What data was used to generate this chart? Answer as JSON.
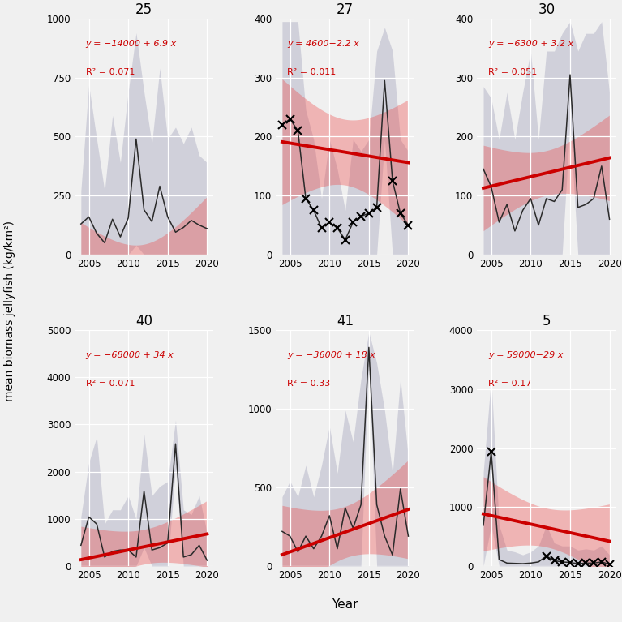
{
  "panels": [
    {
      "title": "25",
      "eq_line1": "y = −14000 + 6.9 x",
      "eq_line2": "R² = 0.071",
      "slope": 6.9,
      "intercept": -14000,
      "ylim": [
        0,
        1000
      ],
      "yticks": [
        0,
        250,
        500,
        750,
        1000
      ],
      "years": [
        2004,
        2005,
        2006,
        2007,
        2008,
        2009,
        2010,
        2011,
        2012,
        2013,
        2014,
        2015,
        2016,
        2017,
        2018,
        2019,
        2020
      ],
      "mean": [
        130,
        160,
        90,
        50,
        150,
        75,
        155,
        490,
        190,
        140,
        290,
        160,
        95,
        115,
        145,
        125,
        110
      ],
      "sd_upper": [
        270,
        720,
        490,
        270,
        590,
        390,
        690,
        940,
        690,
        470,
        790,
        490,
        540,
        470,
        540,
        420,
        390
      ],
      "sd_lower": [
        0,
        0,
        0,
        0,
        0,
        0,
        0,
        40,
        0,
        0,
        0,
        0,
        0,
        0,
        0,
        0,
        0
      ],
      "low_sample": []
    },
    {
      "title": "27",
      "eq_line1": "y = 4600−2.2 x",
      "eq_line2": "R² = 0.011",
      "slope": -2.2,
      "intercept": 4600,
      "ylim": [
        0,
        400
      ],
      "yticks": [
        0,
        100,
        200,
        300,
        400
      ],
      "years": [
        2004,
        2005,
        2006,
        2007,
        2008,
        2009,
        2010,
        2011,
        2012,
        2013,
        2014,
        2015,
        2016,
        2017,
        2018,
        2019,
        2020
      ],
      "mean": [
        220,
        230,
        210,
        95,
        75,
        45,
        55,
        45,
        25,
        55,
        65,
        70,
        80,
        295,
        125,
        70,
        50
      ],
      "sd_upper": [
        395,
        395,
        395,
        245,
        195,
        95,
        195,
        145,
        75,
        195,
        175,
        195,
        345,
        385,
        345,
        195,
        175
      ],
      "sd_lower": [
        0,
        0,
        0,
        0,
        0,
        0,
        0,
        0,
        0,
        0,
        0,
        0,
        0,
        195,
        0,
        0,
        0
      ],
      "low_sample": [
        2004,
        2005,
        2006,
        2007,
        2008,
        2009,
        2010,
        2011,
        2012,
        2013,
        2014,
        2015,
        2016,
        2018,
        2019,
        2020
      ]
    },
    {
      "title": "30",
      "eq_line1": "y = −6300 + 3.2 x",
      "eq_line2": "R² = 0.051",
      "slope": 3.2,
      "intercept": -6300,
      "ylim": [
        0,
        400
      ],
      "yticks": [
        0,
        100,
        200,
        300,
        400
      ],
      "years": [
        2004,
        2005,
        2006,
        2007,
        2008,
        2009,
        2010,
        2011,
        2012,
        2013,
        2014,
        2015,
        2016,
        2017,
        2018,
        2019,
        2020
      ],
      "mean": [
        145,
        115,
        55,
        85,
        40,
        75,
        95,
        50,
        95,
        90,
        110,
        305,
        80,
        85,
        95,
        150,
        60
      ],
      "sd_upper": [
        285,
        265,
        195,
        275,
        195,
        275,
        345,
        195,
        345,
        345,
        375,
        395,
        345,
        375,
        375,
        395,
        275
      ],
      "sd_lower": [
        0,
        0,
        0,
        0,
        0,
        0,
        0,
        0,
        0,
        0,
        0,
        225,
        0,
        0,
        0,
        0,
        0
      ],
      "low_sample": []
    },
    {
      "title": "40",
      "eq_line1": "y = −68000 + 34 x",
      "eq_line2": "R² = 0.071",
      "slope": 34,
      "intercept": -68000,
      "ylim": [
        0,
        5000
      ],
      "yticks": [
        0,
        1000,
        2000,
        3000,
        4000,
        5000
      ],
      "years": [
        2004,
        2005,
        2006,
        2007,
        2008,
        2009,
        2010,
        2011,
        2012,
        2013,
        2014,
        2015,
        2016,
        2017,
        2018,
        2019,
        2020
      ],
      "mean": [
        440,
        1040,
        890,
        190,
        310,
        340,
        340,
        190,
        1590,
        340,
        390,
        490,
        2590,
        190,
        240,
        440,
        120
      ],
      "sd_upper": [
        1040,
        2190,
        2740,
        890,
        1190,
        1190,
        1490,
        990,
        2790,
        1490,
        1690,
        1790,
        3090,
        1190,
        1090,
        1490,
        690
      ],
      "sd_lower": [
        0,
        0,
        0,
        0,
        0,
        0,
        0,
        0,
        390,
        0,
        0,
        0,
        2090,
        0,
        0,
        0,
        0
      ],
      "low_sample": []
    },
    {
      "title": "41",
      "eq_line1": "y = −36000 + 18 x",
      "eq_line2": "R² = 0.33",
      "slope": 18,
      "intercept": -36000,
      "ylim": [
        0,
        1500
      ],
      "yticks": [
        0,
        500,
        1000,
        1500
      ],
      "years": [
        2004,
        2005,
        2006,
        2007,
        2008,
        2009,
        2010,
        2011,
        2012,
        2013,
        2014,
        2015,
        2016,
        2017,
        2018,
        2019,
        2020
      ],
      "mean": [
        220,
        190,
        90,
        190,
        110,
        190,
        320,
        110,
        370,
        240,
        390,
        1390,
        390,
        190,
        70,
        490,
        190
      ],
      "sd_upper": [
        440,
        540,
        440,
        640,
        440,
        640,
        890,
        590,
        990,
        790,
        1190,
        1490,
        1290,
        990,
        590,
        1190,
        690
      ],
      "sd_lower": [
        0,
        0,
        0,
        0,
        0,
        0,
        0,
        0,
        0,
        0,
        0,
        1290,
        0,
        0,
        0,
        0,
        0
      ],
      "low_sample": []
    },
    {
      "title": "5",
      "eq_line1": "y = 59000−29 x",
      "eq_line2": "R² = 0.17",
      "slope": -29,
      "intercept": 59000,
      "ylim": [
        0,
        4000
      ],
      "yticks": [
        0,
        1000,
        2000,
        3000,
        4000
      ],
      "years": [
        2004,
        2005,
        2006,
        2007,
        2008,
        2009,
        2010,
        2011,
        2012,
        2013,
        2014,
        2015,
        2016,
        2017,
        2018,
        2019,
        2020
      ],
      "mean": [
        690,
        1940,
        110,
        50,
        45,
        40,
        50,
        70,
        170,
        90,
        70,
        60,
        40,
        50,
        50,
        70,
        30
      ],
      "sd_upper": [
        1590,
        3190,
        690,
        270,
        240,
        190,
        240,
        340,
        690,
        390,
        340,
        340,
        270,
        290,
        270,
        340,
        190
      ],
      "sd_lower": [
        0,
        690,
        0,
        0,
        0,
        0,
        0,
        0,
        0,
        0,
        0,
        0,
        0,
        0,
        0,
        0,
        0
      ],
      "low_sample": [
        2005,
        2012,
        2013,
        2014,
        2015,
        2016,
        2017,
        2018,
        2019,
        2020
      ]
    }
  ],
  "bg_color": "#f0f0f0",
  "sd_band_color": "#8888aa",
  "ci_band_color": "#ee4444",
  "line_color": "#2a2a2a",
  "trend_color": "#cc0000",
  "xlabel": "Year",
  "ylabel": "mean biomass jellyfish (kg/km²)",
  "xticks": [
    2005,
    2010,
    2015,
    2020
  ],
  "xlim": [
    2003.2,
    2020.8
  ]
}
